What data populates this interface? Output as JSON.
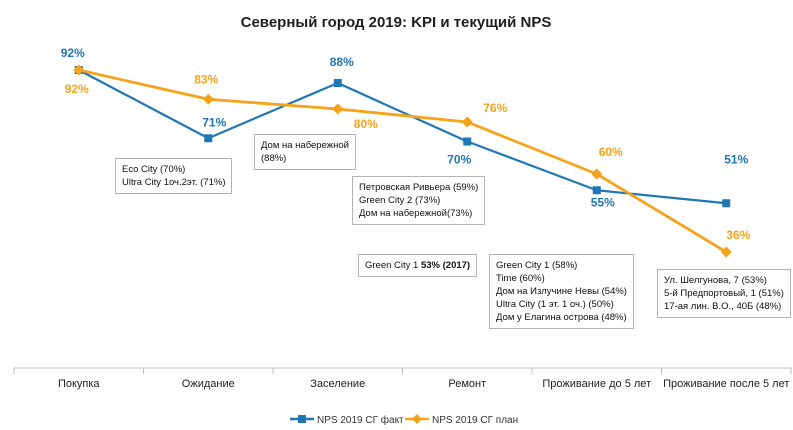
{
  "chart_data": {
    "type": "line",
    "title": "Северный город 2019: KPI и текущий NPS",
    "categories": [
      "Покупка",
      "Ожидание",
      "Заселение",
      "Ремонт",
      "Проживание до 5 лет",
      "Проживание после 5 лет"
    ],
    "series": [
      {
        "name": "NPS 2019 СГ факт",
        "values": [
          92,
          71,
          88,
          70,
          55,
          51
        ],
        "labels": [
          "92%",
          "71%",
          "88%",
          "70%",
          "55%",
          "51%"
        ],
        "color": "#1f77b4",
        "marker": "square"
      },
      {
        "name": "NPS 2019 СГ план",
        "values": [
          92,
          83,
          80,
          76,
          60,
          36
        ],
        "labels": [
          "92%",
          "83%",
          "80%",
          "76%",
          "60%",
          "36%"
        ],
        "color": "#f5a31a",
        "marker": "diamond"
      }
    ],
    "ylim": [
      30,
      100
    ],
    "grid": false,
    "legend": "bottom",
    "annotations": [
      {
        "lines": [
          "Eco City (70%)",
          "Ultra City 1оч.2эт. (71%)"
        ]
      },
      {
        "lines": [
          "Дом на набережной",
          "(88%)"
        ]
      },
      {
        "lines": [
          "Петровская Ривьера (59%)",
          "Green City 2 (73%)",
          "Дом на набережной(73%)"
        ]
      },
      {
        "prefix": "Green City 1 ",
        "bold": "53% (2017)"
      },
      {
        "lines": [
          "Green City 1 (58%)",
          "Time (60%)",
          "Дом на Излучине Невы (54%)",
          "Ultra City (1 эт. 1 оч.) (50%)",
          "Дом у Елагина острова (48%)"
        ]
      },
      {
        "lines": [
          "Ул. Шелгунова, 7 (53%)",
          "5-й Предпортовый, 1 (51%)",
          "17-ая лин. В.О., 40Б (48%)"
        ]
      }
    ]
  }
}
